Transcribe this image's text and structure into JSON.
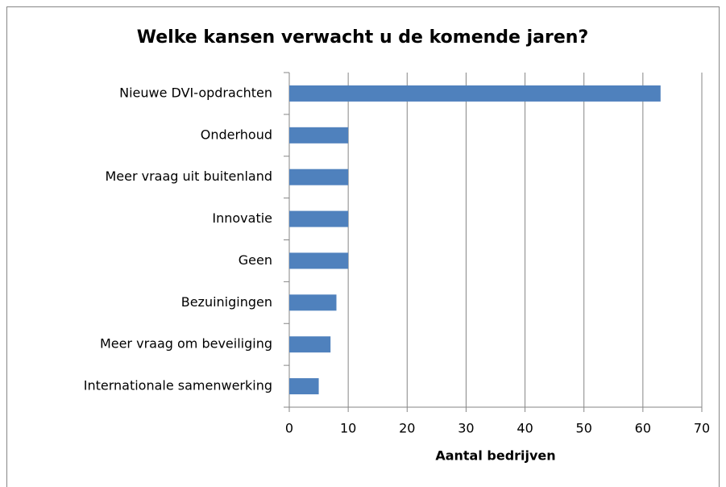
{
  "chart_data": {
    "type": "bar",
    "orientation": "horizontal",
    "title": "Welke kansen verwacht u de komende jaren?",
    "x_label": "Aantal bedrijven",
    "categories": [
      "Nieuwe DVI-opdrachten",
      "Onderhoud",
      "Meer vraag uit buitenland",
      "Innovatie",
      "Geen",
      "Bezuinigingen",
      "Meer vraag om beveiliging",
      "Internationale samenwerking"
    ],
    "values": [
      63,
      10,
      10,
      10,
      10,
      8,
      7,
      5
    ],
    "color": "#4f81bd",
    "xlim": [
      0,
      70
    ],
    "xticks": [
      0,
      10,
      20,
      30,
      40,
      50,
      60,
      70
    ],
    "grid": true
  }
}
